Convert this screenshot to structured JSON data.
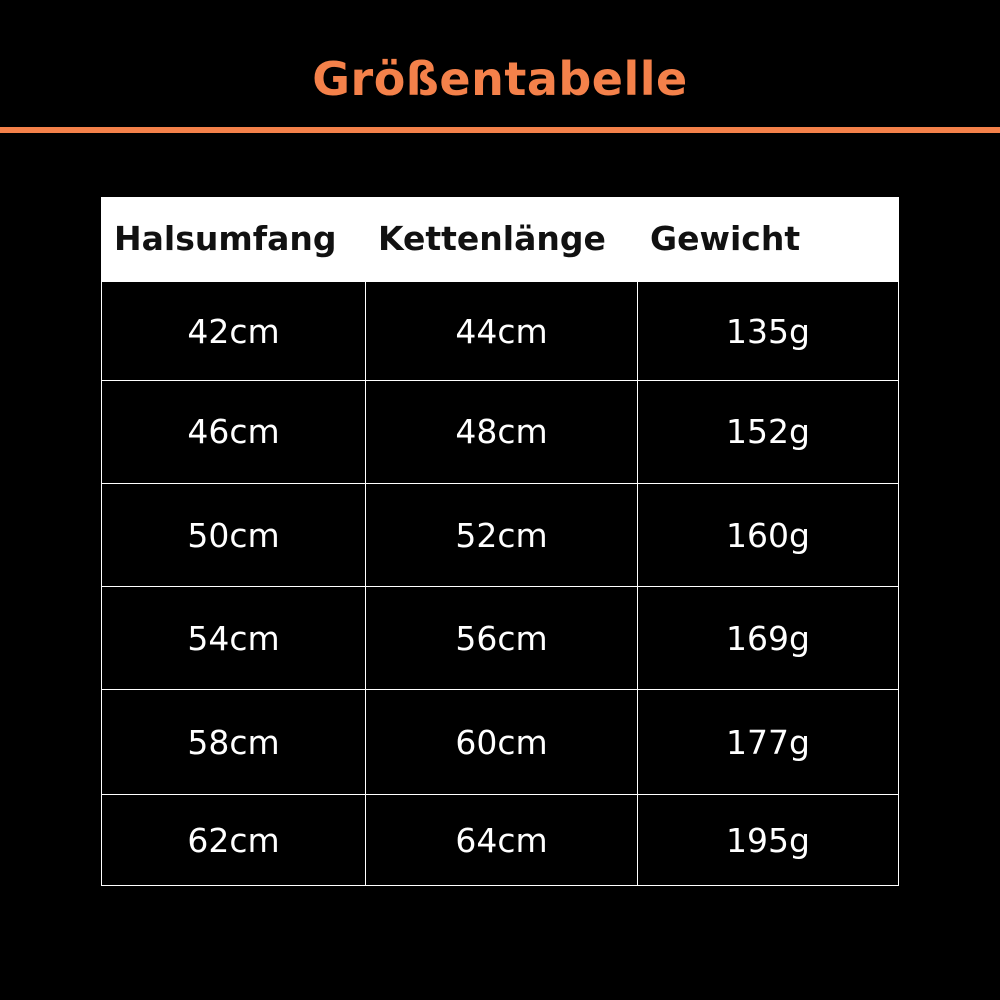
{
  "title": "Größentabelle",
  "colors": {
    "accent": "#F4814A",
    "background": "#000000",
    "header_bg": "#FFFFFF"
  },
  "table": {
    "headers": [
      "Halsumfang",
      "Kettenlänge",
      "Gewicht"
    ],
    "rows": [
      [
        "42cm",
        "44cm",
        "135g"
      ],
      [
        "46cm",
        "48cm",
        "152g"
      ],
      [
        "50cm",
        "52cm",
        "160g"
      ],
      [
        "54cm",
        "56cm",
        "169g"
      ],
      [
        "58cm",
        "60cm",
        "177g"
      ],
      [
        "62cm",
        "64cm",
        "195g"
      ]
    ]
  }
}
